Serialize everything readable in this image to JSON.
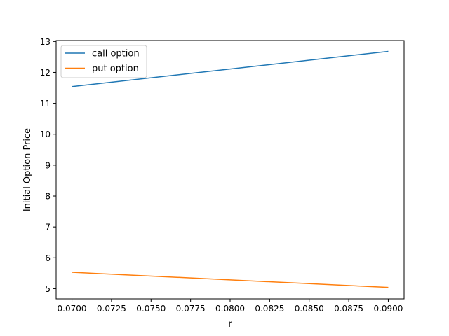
{
  "chart_data": {
    "type": "line",
    "title": "",
    "xlabel": "r",
    "ylabel": "Initial Option Price",
    "xlim": [
      0.069,
      0.091
    ],
    "ylim": [
      4.67,
      13.03
    ],
    "xticks": [
      0.07,
      0.0725,
      0.075,
      0.0775,
      0.08,
      0.0825,
      0.085,
      0.0875,
      0.09
    ],
    "xtick_labels": [
      "0.0700",
      "0.0725",
      "0.0750",
      "0.0775",
      "0.0800",
      "0.0825",
      "0.0850",
      "0.0875",
      "0.0900"
    ],
    "yticks": [
      5,
      6,
      7,
      8,
      9,
      10,
      11,
      12,
      13
    ],
    "ytick_labels": [
      "5",
      "6",
      "7",
      "8",
      "9",
      "10",
      "11",
      "12",
      "13"
    ],
    "grid": false,
    "legend_position": "top-left",
    "series": [
      {
        "name": "call option",
        "color": "#1f77b4",
        "x": [
          0.07,
          0.09
        ],
        "y": [
          11.54,
          12.68
        ]
      },
      {
        "name": "put option",
        "color": "#ff7f0e",
        "x": [
          0.07,
          0.09
        ],
        "y": [
          5.53,
          5.04
        ]
      }
    ]
  }
}
